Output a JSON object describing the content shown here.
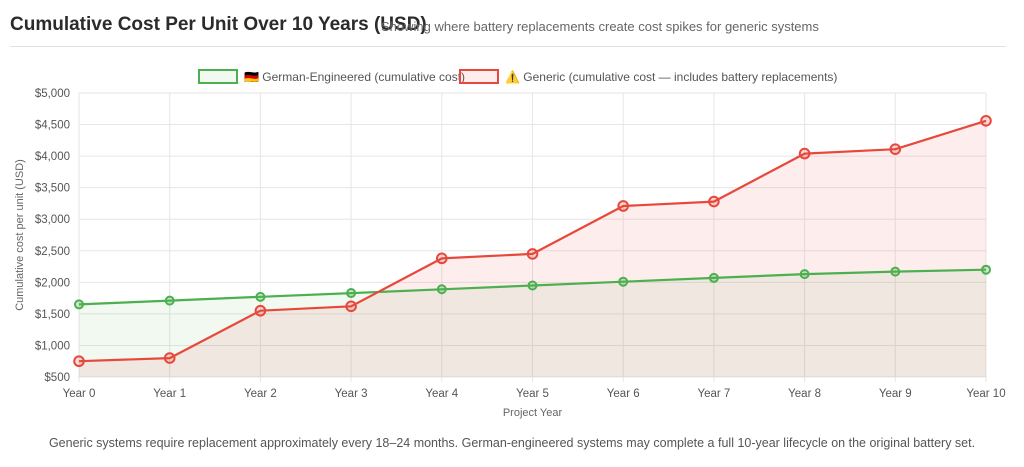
{
  "header": {
    "title": "Cumulative Cost Per Unit Over 10 Years (USD)",
    "subtitle": "Showing where battery replacements create cost spikes for generic systems"
  },
  "footnote": "Generic systems require replacement approximately every 18–24 months. German-engineered systems may complete a full 10-year lifecycle on the original battery set.",
  "chart_data": {
    "type": "line",
    "categories": [
      "Year 0",
      "Year 1",
      "Year 2",
      "Year 3",
      "Year 4",
      "Year 5",
      "Year 6",
      "Year 7",
      "Year 8",
      "Year 9",
      "Year 10"
    ],
    "series": [
      {
        "name": "🇩🇪 German-Engineered (cumulative cost)",
        "color": "#4caf50",
        "fill": "rgba(76,175,80,0.08)",
        "values": [
          1650,
          1710,
          1770,
          1830,
          1890,
          1950,
          2010,
          2070,
          2130,
          2170,
          2200
        ]
      },
      {
        "name": "⚠️ Generic (cumulative cost — includes battery replacements)",
        "color": "#e8483b",
        "fill": "rgba(232,72,59,0.09)",
        "values": [
          750,
          800,
          1550,
          1620,
          2380,
          2450,
          3210,
          3280,
          4040,
          4110,
          4560
        ]
      }
    ],
    "xlabel": "Project Year",
    "ylabel": "Cumulative cost per unit (USD)",
    "ylim": [
      500,
      5000
    ],
    "yticks": [
      "$500",
      "$1,000",
      "$1,500",
      "$2,000",
      "$2,500",
      "$3,000",
      "$3,500",
      "$4,000",
      "$4,500",
      "$5,000"
    ],
    "ytick_values": [
      500,
      1000,
      1500,
      2000,
      2500,
      3000,
      3500,
      4000,
      4500,
      5000
    ],
    "grid": true,
    "legend": "top-center"
  }
}
